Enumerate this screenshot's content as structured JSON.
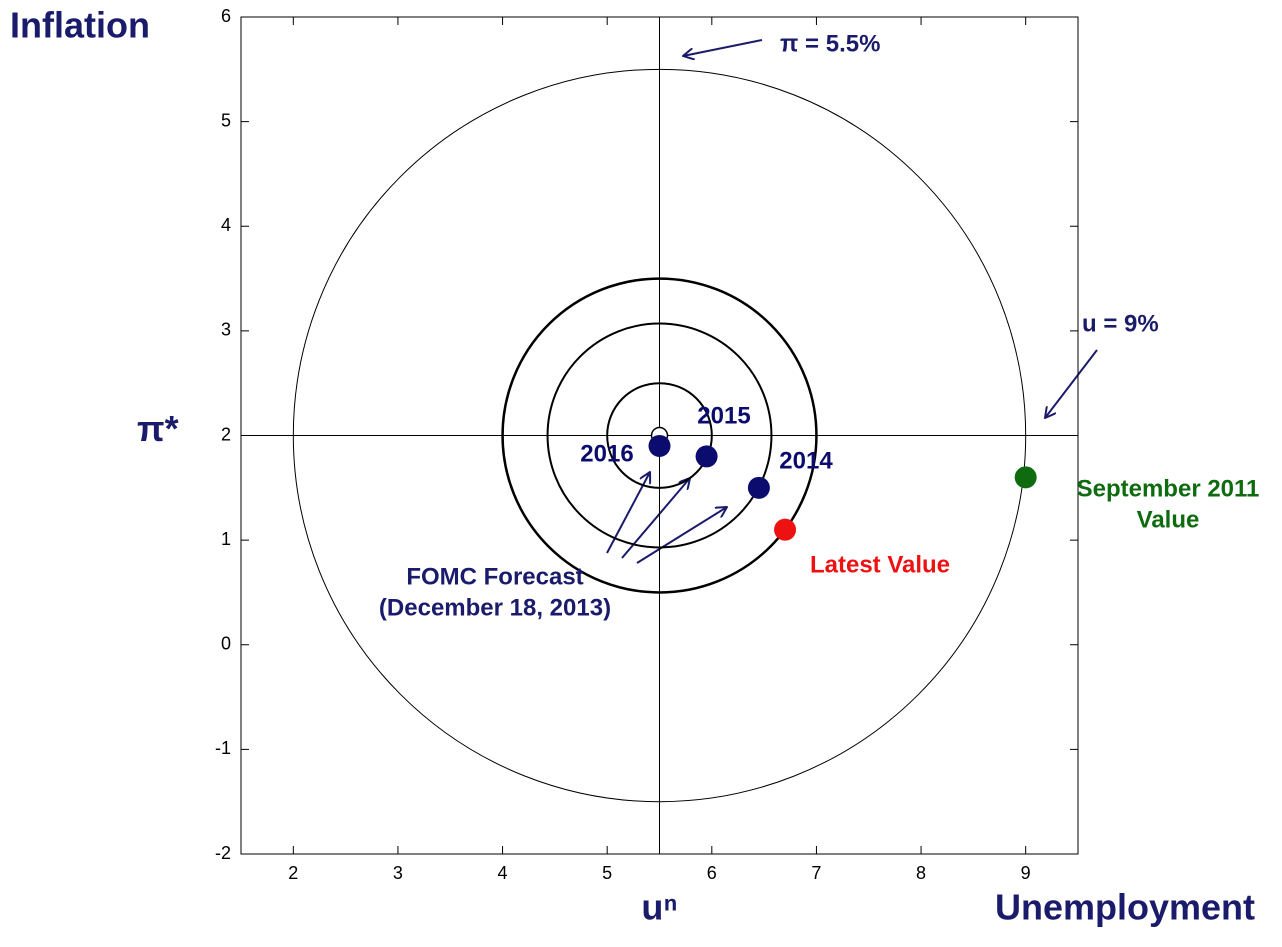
{
  "chart_data": {
    "type": "scatter",
    "x_label": "Unemployment",
    "y_label": "Inflation",
    "xlim": [
      1.5,
      9.5
    ],
    "ylim": [
      -2,
      6
    ],
    "xticks": [
      2,
      3,
      4,
      5,
      6,
      7,
      8,
      9
    ],
    "yticks": [
      -2,
      -1,
      0,
      1,
      2,
      3,
      4,
      5,
      6
    ],
    "reference_lines": [
      {
        "axis": "x",
        "value": 5.5,
        "label": "uⁿ"
      },
      {
        "axis": "y",
        "value": 2,
        "label": "π*"
      }
    ],
    "target": {
      "x": 5.5,
      "y": 2
    },
    "circles": [
      {
        "radius": 0.5,
        "width": 2
      },
      {
        "radius": 1.07,
        "width": 2
      },
      {
        "radius": 1.5,
        "width": 2.5
      },
      {
        "radius": 3.5,
        "width": 1
      }
    ],
    "points": [
      {
        "label": [
          "2016"
        ],
        "x": 5.5,
        "y": 1.9,
        "color": "#0c0c6e"
      },
      {
        "label": [
          "2015"
        ],
        "x": 5.95,
        "y": 1.8,
        "color": "#0c0c6e"
      },
      {
        "label": [
          "2014"
        ],
        "x": 6.45,
        "y": 1.5,
        "color": "#0c0c6e"
      },
      {
        "label": [
          "Latest Value"
        ],
        "x": 6.7,
        "y": 1.1,
        "color": "#ee1111"
      },
      {
        "label": [
          "September 2011",
          "Value"
        ],
        "x": 9,
        "y": 1.6,
        "color": "#0f6b10"
      }
    ],
    "annotations": [
      {
        "text": [
          "π = 5.5%"
        ]
      },
      {
        "text": [
          "u = 9%"
        ]
      },
      {
        "text": [
          "FOMC Forecast",
          "(December 18, 2013)"
        ]
      }
    ]
  }
}
